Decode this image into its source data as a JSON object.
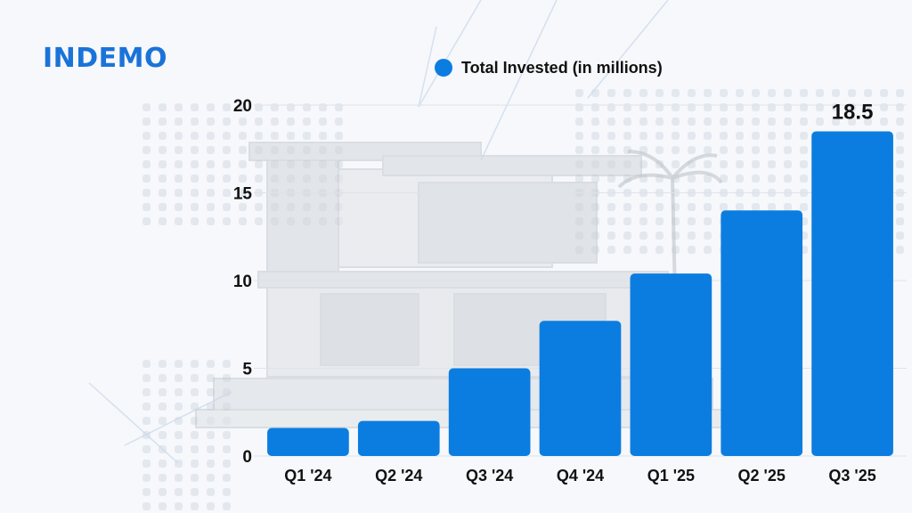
{
  "brand": {
    "logo_text": "INDEMO",
    "color": "#1a73d9"
  },
  "chart_data": {
    "type": "bar",
    "categories": [
      "Q1 '24",
      "Q2 '24",
      "Q3 '24",
      "Q4 '24",
      "Q1 '25",
      "Q2 '25",
      "Q3 '25"
    ],
    "series": [
      {
        "name": "Total Invested (in millions)",
        "values": [
          1.6,
          2.0,
          5.0,
          7.7,
          10.4,
          14.0,
          18.5
        ],
        "color": "#0c7de0"
      }
    ],
    "data_labels": [
      {
        "category": "Q3 '25",
        "text": "18.5"
      }
    ],
    "yticks": [
      0,
      5,
      10,
      15,
      20
    ],
    "ylim": [
      0,
      20
    ],
    "title": "",
    "xlabel": "",
    "ylabel": "",
    "legend_position": "top",
    "grid": true
  }
}
